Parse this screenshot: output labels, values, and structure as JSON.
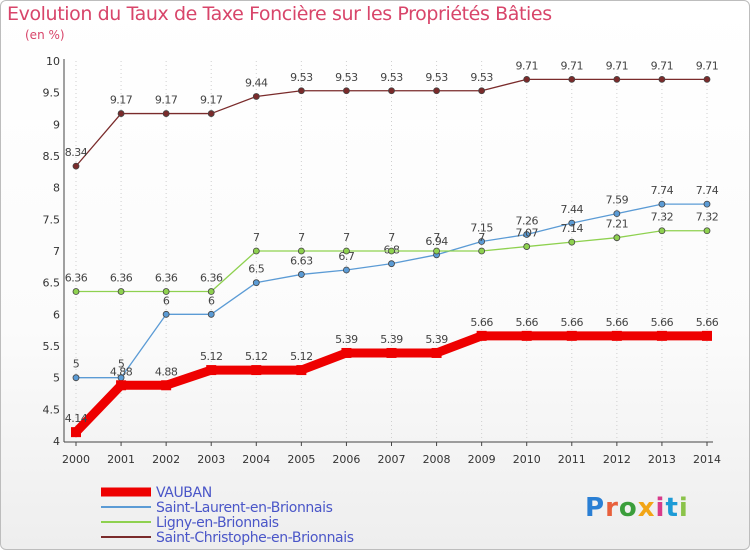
{
  "title": "Evolution du Taux de Taxe Foncière sur les Propriétés Bâties",
  "subtitle": "(en %)",
  "logo": {
    "text": "Proxiti",
    "colors": [
      "#2a7fd4",
      "#e8603c",
      "#3b9e3b",
      "#f2a516",
      "#d83a8a",
      "#1d9bd6",
      "#8bc34a"
    ]
  },
  "chart_data": {
    "type": "line",
    "title": "Evolution du Taux de Taxe Foncière sur les Propriétés Bâties",
    "ylabel": "(en %)",
    "xlabel": "",
    "ylim": [
      4,
      10
    ],
    "yticks": [
      "4",
      "4.5",
      "5",
      "5.5",
      "6",
      "6.5",
      "7",
      "7.5",
      "8",
      "8.5",
      "9",
      "9.5",
      "10"
    ],
    "categories": [
      "2000",
      "2001",
      "2002",
      "2003",
      "2004",
      "2005",
      "2006",
      "2007",
      "2008",
      "2009",
      "2010",
      "2011",
      "2012",
      "2013",
      "2014"
    ],
    "series": [
      {
        "name": "VAUBAN",
        "color": "#ee0000",
        "bold": true,
        "values": [
          4.14,
          4.88,
          4.88,
          5.12,
          5.12,
          5.12,
          5.39,
          5.39,
          5.39,
          5.66,
          5.66,
          5.66,
          5.66,
          5.66,
          5.66
        ],
        "labels": [
          "4.14",
          "4.88",
          "4.88",
          "5.12",
          "5.12",
          "5.12",
          "5.39",
          "5.39",
          "5.39",
          "5.66",
          "5.66",
          "5.66",
          "5.66",
          "5.66",
          "5.66"
        ]
      },
      {
        "name": "Saint-Laurent-en-Brionnais",
        "color": "#5b9bd5",
        "bold": false,
        "values": [
          5,
          5,
          6,
          6,
          6.5,
          6.63,
          6.7,
          6.8,
          6.94,
          7.15,
          7.26,
          7.44,
          7.59,
          7.74,
          7.74
        ],
        "labels": [
          "5",
          "5",
          "6",
          "6",
          "6.5",
          "6.63",
          "6.7",
          "6.8",
          "6.94",
          "7.15",
          "7.26",
          "7.44",
          "7.59",
          "7.74",
          "7.74"
        ]
      },
      {
        "name": "Ligny-en-Brionnais",
        "color": "#8ed14f",
        "bold": false,
        "values": [
          6.36,
          6.36,
          6.36,
          6.36,
          7,
          7,
          7,
          7,
          7,
          7,
          7.07,
          7.14,
          7.21,
          7.32,
          7.32
        ],
        "labels": [
          "6.36",
          "6.36",
          "6.36",
          "6.36",
          "7",
          "7",
          "7",
          "7",
          "7",
          "7",
          "7.07",
          "7.14",
          "7.21",
          "7.32",
          "7.32"
        ]
      },
      {
        "name": "Saint-Christophe-en-Brionnais",
        "color": "#7a2b2b",
        "bold": false,
        "values": [
          8.34,
          9.17,
          9.17,
          9.17,
          9.44,
          9.53,
          9.53,
          9.53,
          9.53,
          9.53,
          9.71,
          9.71,
          9.71,
          9.71,
          9.71
        ],
        "labels": [
          "8.34",
          "9.17",
          "9.17",
          "9.17",
          "9.44",
          "9.53",
          "9.53",
          "9.53",
          "9.53",
          "9.53",
          "9.71",
          "9.71",
          "9.71",
          "9.71",
          "9.71"
        ]
      }
    ]
  }
}
